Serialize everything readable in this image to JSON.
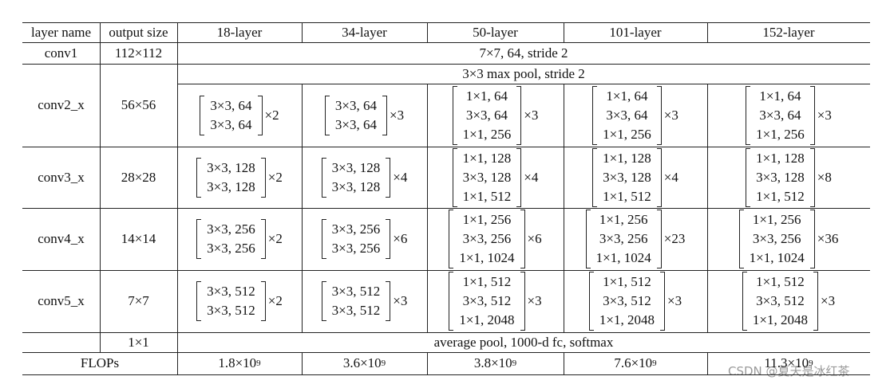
{
  "header": [
    "layer name",
    "output size",
    "18-layer",
    "34-layer",
    "50-layer",
    "101-layer",
    "152-layer"
  ],
  "rows": [
    {
      "name": "conv1",
      "output_size": "112×112",
      "span": "7×7, 64, stride 2"
    },
    {
      "name": "conv2_x",
      "output_size": "56×56",
      "span": "3×3 max pool, stride 2",
      "blocks": [
        {
          "lines": [
            "3×3, 64",
            "3×3, 64"
          ],
          "times": "×2"
        },
        {
          "lines": [
            "3×3, 64",
            "3×3, 64"
          ],
          "times": "×3"
        },
        {
          "lines": [
            "1×1, 64",
            "3×3, 64",
            "1×1, 256"
          ],
          "times": "×3"
        },
        {
          "lines": [
            "1×1, 64",
            "3×3, 64",
            "1×1, 256"
          ],
          "times": "×3"
        },
        {
          "lines": [
            "1×1, 64",
            "3×3, 64",
            "1×1, 256"
          ],
          "times": "×3"
        }
      ]
    },
    {
      "name": "conv3_x",
      "output_size": "28×28",
      "blocks": [
        {
          "lines": [
            "3×3, 128",
            "3×3, 128"
          ],
          "times": "×2"
        },
        {
          "lines": [
            "3×3, 128",
            "3×3, 128"
          ],
          "times": "×4"
        },
        {
          "lines": [
            "1×1, 128",
            "3×3, 128",
            "1×1, 512"
          ],
          "times": "×4"
        },
        {
          "lines": [
            "1×1, 128",
            "3×3, 128",
            "1×1, 512"
          ],
          "times": "×4"
        },
        {
          "lines": [
            "1×1, 128",
            "3×3, 128",
            "1×1, 512"
          ],
          "times": "×8"
        }
      ]
    },
    {
      "name": "conv4_x",
      "output_size": "14×14",
      "blocks": [
        {
          "lines": [
            "3×3, 256",
            "3×3, 256"
          ],
          "times": "×2"
        },
        {
          "lines": [
            "3×3, 256",
            "3×3, 256"
          ],
          "times": "×6"
        },
        {
          "lines": [
            "1×1, 256",
            "3×3, 256",
            "1×1, 1024"
          ],
          "times": "×6"
        },
        {
          "lines": [
            "1×1, 256",
            "3×3, 256",
            "1×1, 1024"
          ],
          "times": "×23"
        },
        {
          "lines": [
            "1×1, 256",
            "3×3, 256",
            "1×1, 1024"
          ],
          "times": "×36"
        }
      ]
    },
    {
      "name": "conv5_x",
      "output_size": "7×7",
      "blocks": [
        {
          "lines": [
            "3×3, 512",
            "3×3, 512"
          ],
          "times": "×2"
        },
        {
          "lines": [
            "3×3, 512",
            "3×3, 512"
          ],
          "times": "×3"
        },
        {
          "lines": [
            "1×1, 512",
            "3×3, 512",
            "1×1, 2048"
          ],
          "times": "×3"
        },
        {
          "lines": [
            "1×1, 512",
            "3×3, 512",
            "1×1, 2048"
          ],
          "times": "×3"
        },
        {
          "lines": [
            "1×1, 512",
            "3×3, 512",
            "1×1, 2048"
          ],
          "times": "×3"
        }
      ]
    },
    {
      "output_size": "1×1",
      "span": "average pool, 1000-d fc, softmax"
    }
  ],
  "flops": {
    "label": "FLOPs",
    "values": [
      {
        "base": "1.8×10",
        "exp": "9"
      },
      {
        "base": "3.6×10",
        "exp": "9"
      },
      {
        "base": "3.8×10",
        "exp": "9"
      },
      {
        "base": "7.6×10",
        "exp": "9"
      },
      {
        "base": "11.3×10",
        "exp": "9"
      }
    ]
  },
  "watermark": "CSDN @夏天是冰红茶"
}
